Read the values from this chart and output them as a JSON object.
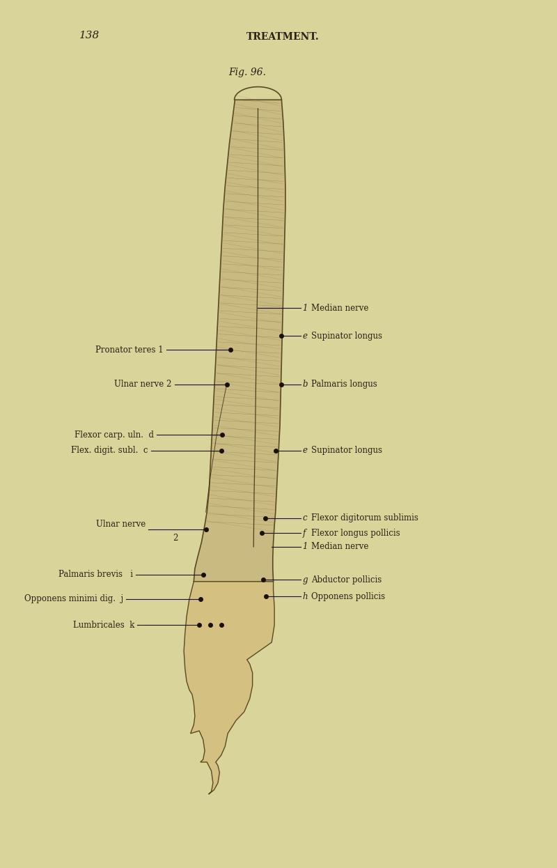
{
  "background_color": "#d8d49a",
  "page_number": "138",
  "header": "TREATMENT.",
  "fig_label": "Fig. 96.",
  "text_color": "#2a2015",
  "arm_color": "#c8ba80",
  "arm_edge": "#5a4a20",
  "hand_color": "#d4c080",
  "shade_color": "#7a6a35",
  "dot_color": "#1a1005",
  "line_color": "#1a1005",
  "inner_line_color": "#3a2a10"
}
